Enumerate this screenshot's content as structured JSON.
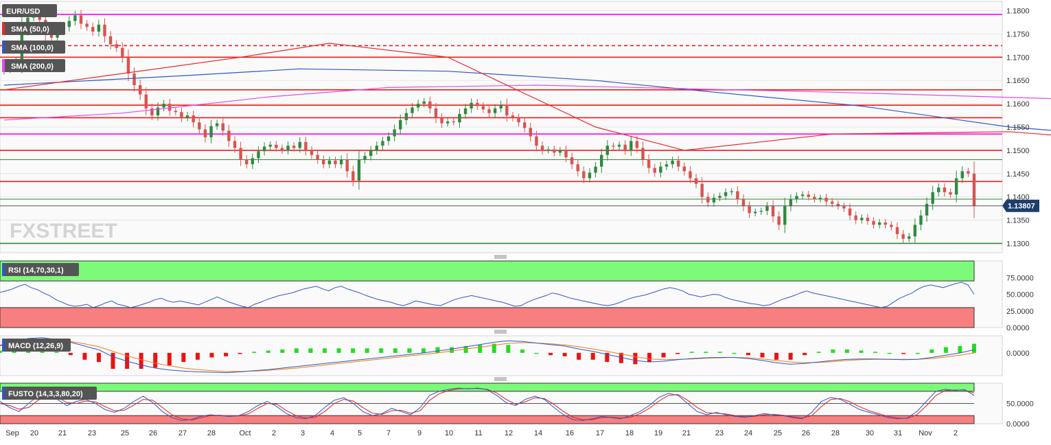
{
  "symbol": "EUR/USD",
  "watermark": "FXSTREET",
  "colors": {
    "up": "#2e8b3e",
    "down": "#d9534f",
    "sma50": "#e8292a",
    "sma100": "#2f57c6",
    "sma200": "#e24be6",
    "hline_red": "#ee1c1c",
    "hline_magenta": "#ff00ff",
    "hline_green": "#2e8b2e",
    "price_badge": "#1f3d6b"
  },
  "indicators": [
    "SMA (50,0)",
    "SMA (100,0)",
    "SMA (200,0)"
  ],
  "chart_data": [
    {
      "type": "candlestick",
      "ylim": [
        1.128,
        1.182
      ],
      "y_ticks": [
        "1.1800",
        "1.1750",
        "1.1700",
        "1.1650",
        "1.1600",
        "1.1550",
        "1.1500",
        "1.1450",
        "1.1400",
        "1.1350",
        "1.1300"
      ],
      "y_tick_values": [
        1.18,
        1.175,
        1.17,
        1.165,
        1.16,
        1.155,
        1.15,
        1.145,
        1.14,
        1.135,
        1.13
      ],
      "x_labels": [
        "Sep",
        "20",
        "21",
        "23",
        "25",
        "26",
        "27",
        "28",
        "Oct",
        "2",
        "3",
        "4",
        "5",
        "7",
        "9",
        "10",
        "11",
        "12",
        "14",
        "16",
        "17",
        "18",
        "19",
        "21",
        "23",
        "24",
        "25",
        "26",
        "28",
        "30",
        "31",
        "Nov",
        "2"
      ],
      "last_price": 1.13807,
      "last_price_label": "1.13807",
      "horizontal_lines": [
        {
          "price": 1.1792,
          "color": "magenta",
          "style": "solid"
        },
        {
          "price": 1.1725,
          "color": "red",
          "style": "dashed"
        },
        {
          "price": 1.17,
          "color": "red",
          "style": "solid"
        },
        {
          "price": 1.163,
          "color": "red",
          "style": "solid"
        },
        {
          "price": 1.1597,
          "color": "red",
          "style": "solid"
        },
        {
          "price": 1.157,
          "color": "red",
          "style": "solid"
        },
        {
          "price": 1.1535,
          "color": "magenta",
          "style": "solid"
        },
        {
          "price": 1.15,
          "color": "red",
          "style": "solid"
        },
        {
          "price": 1.148,
          "color": "green",
          "style": "thin"
        },
        {
          "price": 1.1433,
          "color": "red",
          "style": "solid"
        },
        {
          "price": 1.1395,
          "color": "green",
          "style": "thin"
        },
        {
          "price": 1.13,
          "color": "green",
          "style": "solid"
        }
      ],
      "closes": [
        1.1675,
        1.1685,
        1.1692,
        1.176,
        1.1785,
        1.179,
        1.178,
        1.175,
        1.1742,
        1.1758,
        1.1765,
        1.1778,
        1.179,
        1.1772,
        1.1765,
        1.1755,
        1.177,
        1.1745,
        1.1728,
        1.172,
        1.17,
        1.1665,
        1.164,
        1.162,
        1.159,
        1.1575,
        1.1592,
        1.16,
        1.1585,
        1.1582,
        1.157,
        1.1575,
        1.156,
        1.1545,
        1.1528,
        1.1552,
        1.1558,
        1.1542,
        1.152,
        1.1505,
        1.148,
        1.147,
        1.1483,
        1.1498,
        1.1508,
        1.1512,
        1.1505,
        1.15,
        1.151,
        1.1505,
        1.1518,
        1.15,
        1.149,
        1.148,
        1.147,
        1.1478,
        1.147,
        1.148,
        1.1455,
        1.1435,
        1.148,
        1.1488,
        1.15,
        1.151,
        1.152,
        1.153,
        1.1545,
        1.1565,
        1.158,
        1.1592,
        1.16,
        1.1605,
        1.159,
        1.157,
        1.1558,
        1.1562,
        1.156,
        1.1578,
        1.159,
        1.1602,
        1.1595,
        1.1588,
        1.158,
        1.159,
        1.1598,
        1.1575,
        1.157,
        1.156,
        1.1548,
        1.153,
        1.151,
        1.15,
        1.1502,
        1.1495,
        1.15,
        1.1485,
        1.147,
        1.1455,
        1.144,
        1.1452,
        1.1465,
        1.149,
        1.151,
        1.1508,
        1.1512,
        1.15,
        1.152,
        1.1505,
        1.148,
        1.1462,
        1.1452,
        1.1465,
        1.147,
        1.1478,
        1.1465,
        1.1455,
        1.144,
        1.1428,
        1.14,
        1.1388,
        1.1398,
        1.1402,
        1.141,
        1.1412,
        1.1395,
        1.138,
        1.1365,
        1.1368,
        1.137,
        1.138,
        1.1358,
        1.134,
        1.138,
        1.1395,
        1.1402,
        1.1405,
        1.14,
        1.1395,
        1.1398,
        1.139,
        1.1385,
        1.138,
        1.1375,
        1.136,
        1.135,
        1.1355,
        1.1348,
        1.134,
        1.1345,
        1.134,
        1.1335,
        1.132,
        1.131,
        1.1315,
        1.134,
        1.136,
        1.1385,
        1.141,
        1.142,
        1.141,
        1.1405,
        1.144,
        1.1455,
        1.145,
        1.1381
      ],
      "sma50": [
        [
          1.163,
          0
        ],
        [
          1.17,
          40
        ],
        [
          1.173,
          55
        ],
        [
          1.17,
          75
        ],
        [
          1.155,
          100
        ],
        [
          1.15,
          115
        ],
        [
          1.1535,
          140
        ],
        [
          1.154,
          170
        ],
        [
          1.152,
          190
        ],
        [
          1.147,
          210
        ],
        [
          1.142,
          230
        ],
        [
          1.14,
          255
        ],
        [
          1.139,
          271
        ]
      ],
      "sma100": [
        [
          1.164,
          0
        ],
        [
          1.166,
          30
        ],
        [
          1.1675,
          50
        ],
        [
          1.167,
          75
        ],
        [
          1.165,
          100
        ],
        [
          1.1625,
          120
        ],
        [
          1.1595,
          145
        ],
        [
          1.155,
          170
        ],
        [
          1.153,
          190
        ],
        [
          1.1505,
          220
        ],
        [
          1.147,
          250
        ],
        [
          1.146,
          271
        ]
      ],
      "sma200": [
        [
          1.1565,
          0
        ],
        [
          1.158,
          20
        ],
        [
          1.1615,
          45
        ],
        [
          1.1635,
          65
        ],
        [
          1.164,
          90
        ],
        [
          1.1625,
          140
        ],
        [
          1.161,
          180
        ],
        [
          1.1595,
          210
        ],
        [
          1.157,
          240
        ],
        [
          1.1538,
          271
        ]
      ]
    },
    {
      "type": "line",
      "title": "RSI (14,70,30,1)",
      "ylim": [
        0,
        100
      ],
      "y_ticks": [
        "75.0000",
        "50.0000",
        "25.0000",
        "0.0000"
      ],
      "y_tick_values": [
        75,
        50,
        25,
        0
      ],
      "upper_level": 70,
      "lower_level": 30,
      "values": [
        53,
        55,
        58,
        62,
        65,
        60,
        57,
        52,
        48,
        42,
        38,
        34,
        32,
        33,
        35,
        30,
        33,
        37,
        40,
        35,
        33,
        30,
        32,
        35,
        38,
        42,
        44,
        40,
        38,
        40,
        38,
        36,
        34,
        38,
        42,
        46,
        42,
        38,
        35,
        32,
        30,
        35,
        38,
        42,
        45,
        48,
        50,
        52,
        55,
        58,
        60,
        62,
        58,
        55,
        60,
        62,
        58,
        55,
        52,
        48,
        45,
        42,
        40,
        38,
        35,
        33,
        36,
        40,
        38,
        36,
        34,
        33,
        37,
        41,
        44,
        46,
        48,
        46,
        44,
        42,
        40,
        38,
        35,
        32,
        33,
        38,
        42,
        45,
        48,
        52,
        50,
        47,
        44,
        42,
        40,
        38,
        36,
        34,
        33,
        35,
        38,
        42,
        45,
        47,
        49,
        52,
        55,
        58,
        60,
        58,
        55,
        50,
        48,
        46,
        48,
        50,
        49,
        45,
        42,
        40,
        38,
        36,
        35,
        33,
        34,
        38,
        42,
        45,
        48,
        52,
        55,
        52,
        50,
        48,
        46,
        44,
        42,
        40,
        38,
        36,
        34,
        32,
        30,
        32,
        38,
        44,
        48,
        52,
        58,
        62,
        64,
        62,
        60,
        63,
        66,
        68,
        64,
        50
      ]
    },
    {
      "type": "line",
      "title": "MACD (12,26,9)",
      "ylim": [
        -0.006,
        0.0045
      ],
      "y_ticks": [
        "0.0000"
      ],
      "y_tick_values": [
        0
      ],
      "macd": [
        0.002,
        0.003,
        0.0038,
        0.004,
        0.0035,
        0.0028,
        0.0018,
        0.0008,
        -0.001,
        -0.0022,
        -0.0032,
        -0.004,
        -0.0045,
        -0.0048,
        -0.005,
        -0.0051,
        -0.0052,
        -0.005,
        -0.0047,
        -0.0044,
        -0.004,
        -0.0036,
        -0.0032,
        -0.0028,
        -0.0024,
        -0.002,
        -0.0016,
        -0.0012,
        -0.0008,
        -0.0004,
        -0.0,
        0.0005,
        0.001,
        0.0016,
        0.0022,
        0.0028,
        0.0032,
        0.003,
        0.0026,
        0.0022,
        0.0018,
        0.001,
        0.0004,
        -0.0004,
        -0.0012,
        -0.002,
        -0.0024,
        -0.0022,
        -0.0018,
        -0.0015,
        -0.0013,
        -0.0012,
        -0.0012,
        -0.0015,
        -0.002,
        -0.0026,
        -0.003,
        -0.0028,
        -0.0024,
        -0.002,
        -0.0017,
        -0.0016,
        -0.0016,
        -0.0017,
        -0.0018,
        -0.0017,
        -0.0012,
        -0.0006,
        0.0,
        0.0008
      ],
      "signal": [
        0.0018,
        0.0026,
        0.0032,
        0.0035,
        0.0034,
        0.003,
        0.0024,
        0.0016,
        0.0004,
        -0.0008,
        -0.0018,
        -0.0027,
        -0.0034,
        -0.004,
        -0.0044,
        -0.0047,
        -0.0049,
        -0.0049,
        -0.0048,
        -0.0046,
        -0.0043,
        -0.004,
        -0.0036,
        -0.0032,
        -0.0028,
        -0.0024,
        -0.002,
        -0.0016,
        -0.0012,
        -0.0008,
        -0.0004,
        0.0,
        0.0005,
        0.001,
        0.0015,
        0.002,
        0.0025,
        0.0027,
        0.0026,
        0.0024,
        0.0021,
        0.0016,
        0.001,
        0.0004,
        -0.0003,
        -0.001,
        -0.0016,
        -0.0018,
        -0.0017,
        -0.0016,
        -0.0014,
        -0.0013,
        -0.0012,
        -0.0013,
        -0.0016,
        -0.002,
        -0.0024,
        -0.0026,
        -0.0025,
        -0.0023,
        -0.002,
        -0.0018,
        -0.0017,
        -0.0017,
        -0.0017,
        -0.0017,
        -0.0015,
        -0.0011,
        -0.0006,
        0.0
      ]
    },
    {
      "type": "line",
      "title": "FUSTO (14,3,3,80,20)",
      "ylim": [
        0,
        100
      ],
      "y_ticks": [
        "50.0000",
        "0.0000"
      ],
      "y_tick_values": [
        50,
        0
      ],
      "upper_level": 80,
      "lower_level": 20,
      "k": [
        55,
        40,
        30,
        50,
        70,
        72,
        60,
        45,
        55,
        60,
        50,
        35,
        28,
        38,
        55,
        68,
        52,
        30,
        15,
        8,
        10,
        18,
        22,
        20,
        18,
        20,
        30,
        45,
        55,
        42,
        25,
        15,
        12,
        20,
        40,
        58,
        64,
        50,
        30,
        20,
        25,
        38,
        30,
        22,
        40,
        70,
        80,
        85,
        88,
        86,
        88,
        84,
        70,
        52,
        45,
        60,
        68,
        60,
        40,
        22,
        10,
        8,
        12,
        18,
        15,
        12,
        20,
        30,
        45,
        65,
        75,
        70,
        50,
        30,
        22,
        28,
        22,
        18,
        16,
        20,
        25,
        22,
        20,
        15,
        12,
        28,
        55,
        65,
        60,
        48,
        35,
        28,
        22,
        15,
        12,
        14,
        30,
        55,
        80,
        85,
        82,
        84,
        70
      ],
      "d": [
        50,
        45,
        36,
        40,
        58,
        68,
        66,
        52,
        50,
        56,
        54,
        42,
        32,
        33,
        46,
        60,
        58,
        40,
        22,
        12,
        9,
        14,
        20,
        21,
        19,
        19,
        24,
        38,
        50,
        48,
        32,
        20,
        14,
        16,
        30,
        50,
        60,
        56,
        40,
        26,
        23,
        32,
        33,
        26,
        32,
        58,
        74,
        82,
        86,
        87,
        87,
        85,
        76,
        60,
        48,
        54,
        64,
        62,
        48,
        30,
        16,
        10,
        10,
        15,
        16,
        14,
        16,
        25,
        38,
        56,
        70,
        72,
        58,
        40,
        27,
        26,
        24,
        20,
        17,
        18,
        22,
        23,
        21,
        17,
        14,
        20,
        42,
        60,
        62,
        54,
        42,
        32,
        25,
        18,
        14,
        13,
        22,
        44,
        70,
        82,
        83,
        83,
        76
      ]
    }
  ]
}
